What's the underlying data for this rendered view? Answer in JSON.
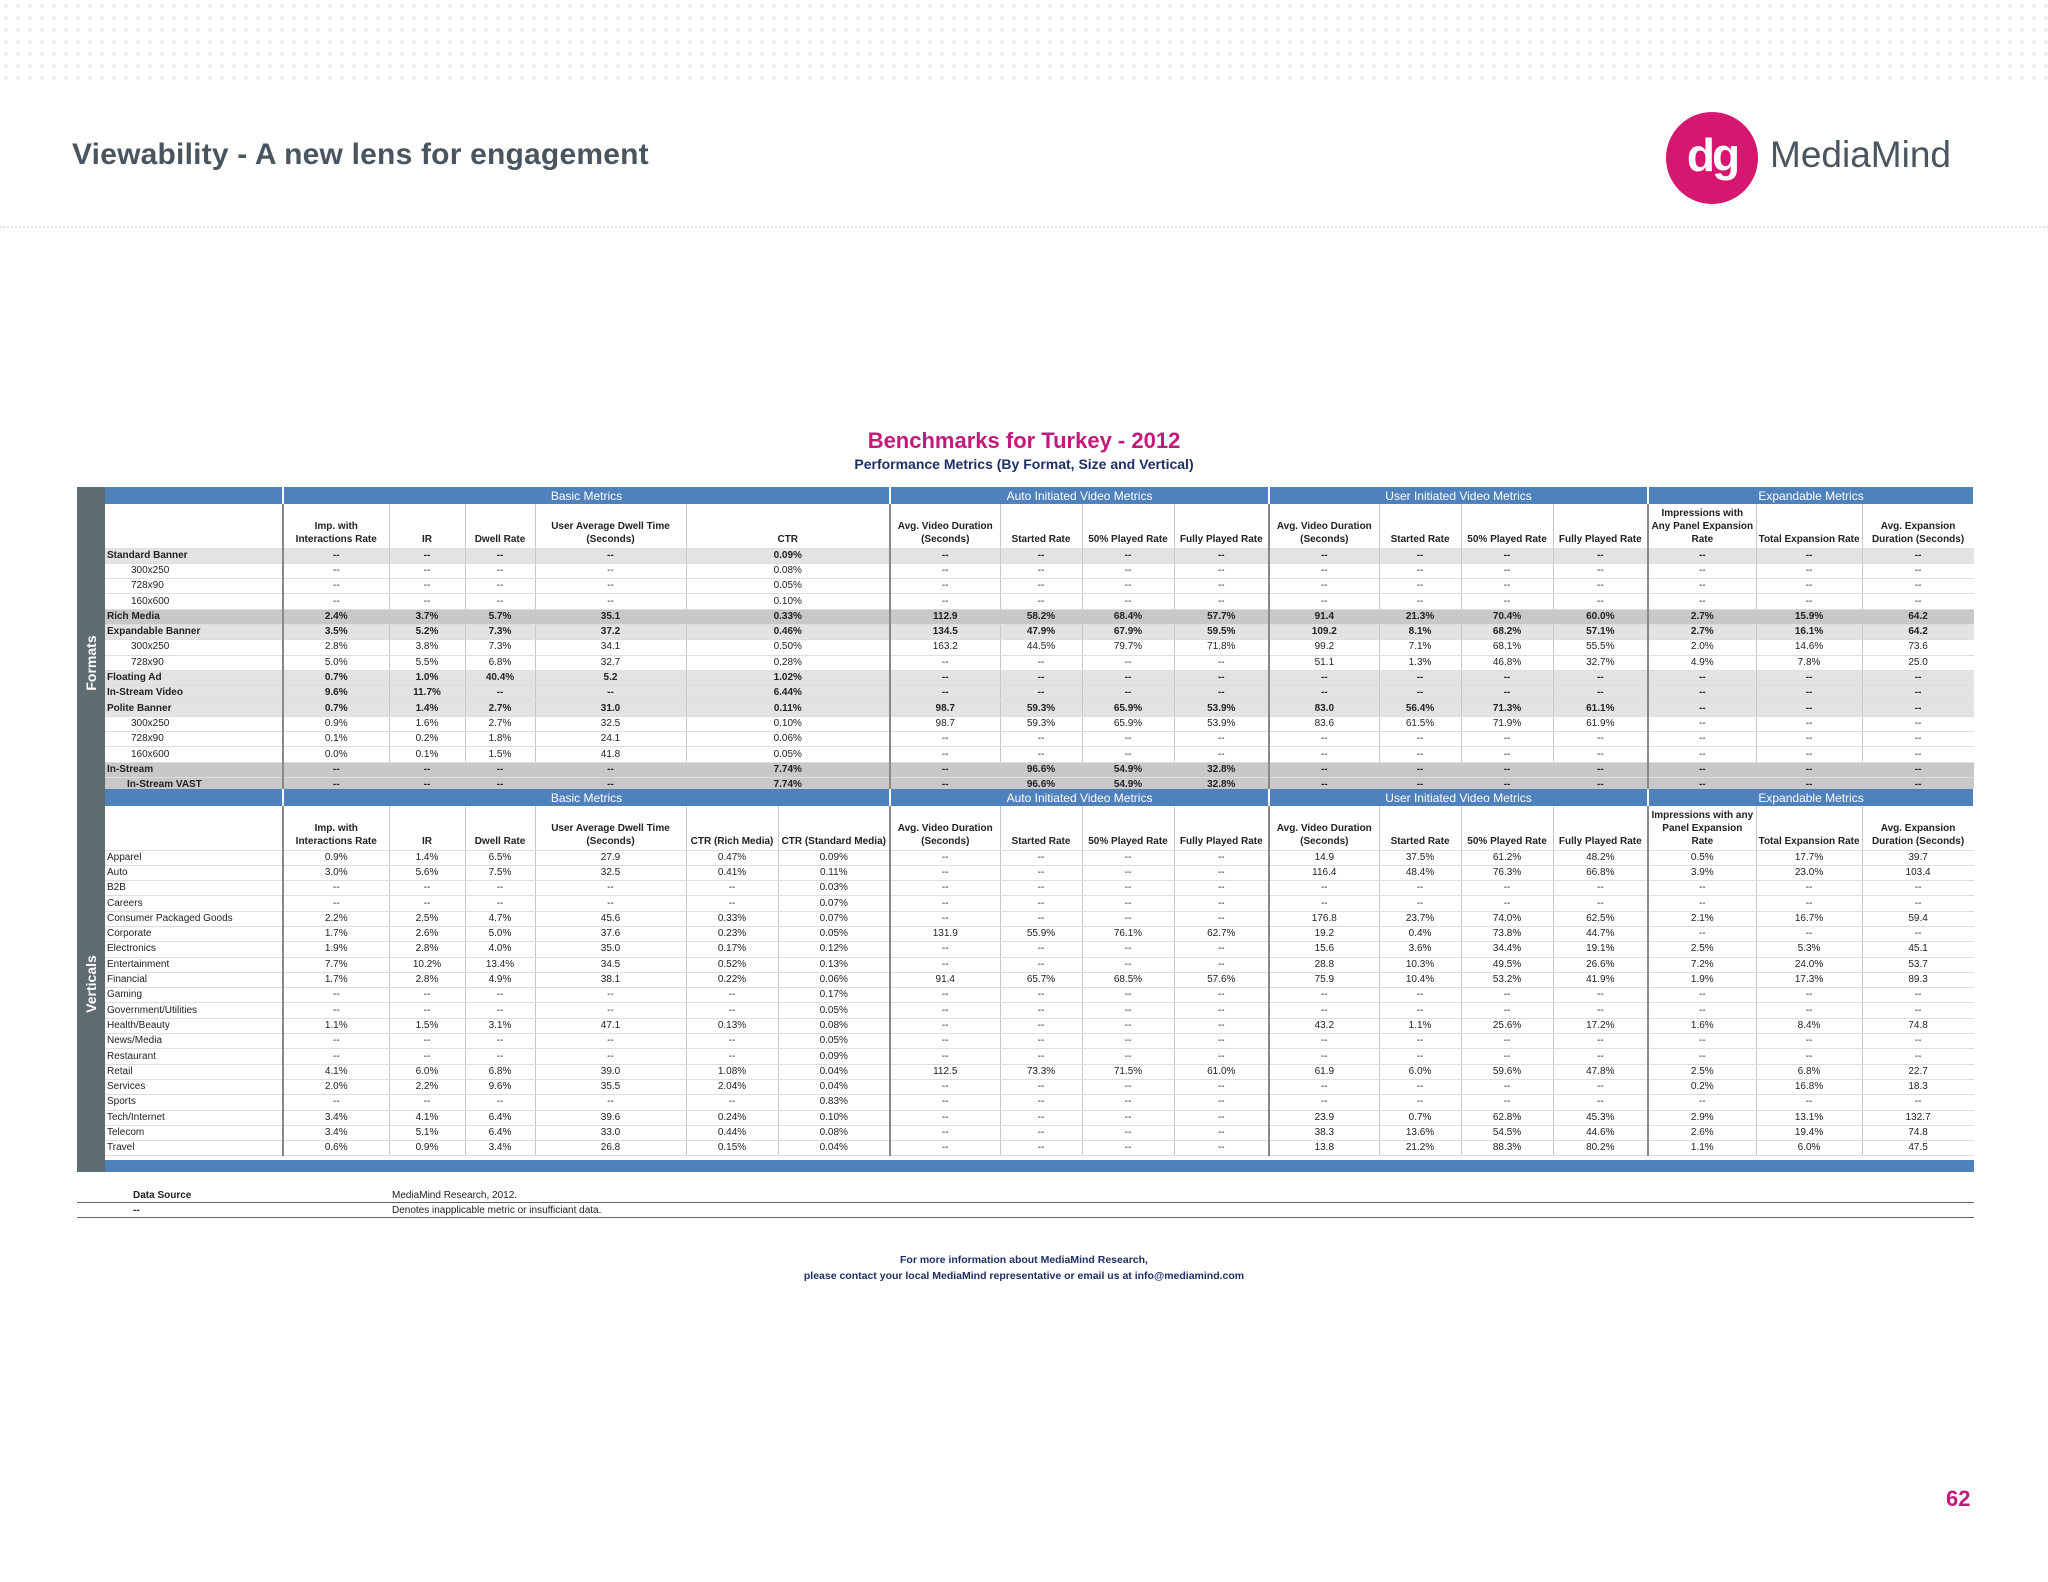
{
  "header": {
    "title": "Viewability - A new lens for engagement",
    "logo_mark": "dg",
    "logo_text": "MediaMind"
  },
  "benchmark": {
    "title": "Benchmarks for Turkey - 2012",
    "subtitle": "Performance Metrics  (By Format, Size and Vertical)"
  },
  "side_labels": {
    "formats": "Formats",
    "verticals": "Verticals"
  },
  "sections": [
    "Basic Metrics",
    "Auto Initiated Video Metrics",
    "User Initiated Video Metrics",
    "Expandable Metrics"
  ],
  "formats_columns": [
    "",
    "Imp. with Interactions Rate",
    "IR",
    "Dwell Rate",
    "User Average Dwell Time (Seconds)",
    "CTR",
    "Avg. Video Duration (Seconds)",
    "Started Rate",
    "50% Played Rate",
    "Fully Played Rate",
    "Avg. Video Duration (Seconds)",
    "Started Rate",
    "50% Played Rate",
    "Fully Played Rate",
    "Impressions with Any Panel Expansion Rate",
    "Total Expansion Rate",
    "Avg. Expansion Duration (Seconds)"
  ],
  "verticals_columns": [
    "",
    "Imp. with Interactions Rate",
    "IR",
    "Dwell Rate",
    "User Average Dwell Time (Seconds)",
    "CTR (Rich Media)",
    "CTR (Standard Media)",
    "Avg. Video Duration (Seconds)",
    "Started Rate",
    "50% Played Rate",
    "Fully Played Rate",
    "Avg. Video Duration (Seconds)",
    "Started Rate",
    "50% Played Rate",
    "Fully Played Rate",
    "Impressions with any Panel Expansion Rate",
    "Total Expansion Rate",
    "Avg. Expansion Duration (Seconds)"
  ],
  "format_rows": [
    {
      "label": "Standard Banner",
      "kind": "group",
      "cells": [
        "--",
        "--",
        "--",
        "--",
        "0.09%",
        "--",
        "--",
        "--",
        "--",
        "--",
        "--",
        "--",
        "--",
        "--",
        "--",
        "--"
      ]
    },
    {
      "label": "300x250",
      "kind": "sub",
      "cells": [
        "--",
        "--",
        "--",
        "--",
        "0.08%",
        "--",
        "--",
        "--",
        "--",
        "--",
        "--",
        "--",
        "--",
        "--",
        "--",
        "--"
      ]
    },
    {
      "label": "728x90",
      "kind": "sub",
      "cells": [
        "--",
        "--",
        "--",
        "--",
        "0.05%",
        "--",
        "--",
        "--",
        "--",
        "--",
        "--",
        "--",
        "--",
        "--",
        "--",
        "--"
      ]
    },
    {
      "label": "160x600",
      "kind": "sub",
      "cells": [
        "--",
        "--",
        "--",
        "--",
        "0.10%",
        "--",
        "--",
        "--",
        "--",
        "--",
        "--",
        "--",
        "--",
        "--",
        "--",
        "--"
      ]
    },
    {
      "label": "Rich Media",
      "kind": "rich",
      "cells": [
        "2.4%",
        "3.7%",
        "5.7%",
        "35.1",
        "0.33%",
        "112.9",
        "58.2%",
        "68.4%",
        "57.7%",
        "91.4",
        "21.3%",
        "70.4%",
        "60.0%",
        "2.7%",
        "15.9%",
        "64.2"
      ]
    },
    {
      "label": "Expandable Banner",
      "kind": "group",
      "cells": [
        "3.5%",
        "5.2%",
        "7.3%",
        "37.2",
        "0.46%",
        "134.5",
        "47.9%",
        "67.9%",
        "59.5%",
        "109.2",
        "8.1%",
        "68.2%",
        "57.1%",
        "2.7%",
        "16.1%",
        "64.2"
      ]
    },
    {
      "label": "300x250",
      "kind": "sub",
      "cells": [
        "2.8%",
        "3.8%",
        "7.3%",
        "34.1",
        "0.50%",
        "163.2",
        "44.5%",
        "79.7%",
        "71.8%",
        "99.2",
        "7.1%",
        "68.1%",
        "55.5%",
        "2.0%",
        "14.6%",
        "73.6"
      ]
    },
    {
      "label": "728x90",
      "kind": "sub",
      "cells": [
        "5.0%",
        "5.5%",
        "6.8%",
        "32.7",
        "0.28%",
        "--",
        "--",
        "--",
        "--",
        "51.1",
        "1.3%",
        "46.8%",
        "32.7%",
        "4.9%",
        "7.8%",
        "25.0"
      ]
    },
    {
      "label": "Floating Ad",
      "kind": "group",
      "cells": [
        "0.7%",
        "1.0%",
        "40.4%",
        "5.2",
        "1.02%",
        "--",
        "--",
        "--",
        "--",
        "--",
        "--",
        "--",
        "--",
        "--",
        "--",
        "--"
      ]
    },
    {
      "label": "In-Stream Video",
      "kind": "group",
      "cells": [
        "9.6%",
        "11.7%",
        "--",
        "--",
        "6.44%",
        "--",
        "--",
        "--",
        "--",
        "--",
        "--",
        "--",
        "--",
        "--",
        "--",
        "--"
      ]
    },
    {
      "label": "Polite Banner",
      "kind": "group",
      "cells": [
        "0.7%",
        "1.4%",
        "2.7%",
        "31.0",
        "0.11%",
        "98.7",
        "59.3%",
        "65.9%",
        "53.9%",
        "83.0",
        "56.4%",
        "71.3%",
        "61.1%",
        "--",
        "--",
        "--"
      ]
    },
    {
      "label": "300x250",
      "kind": "sub",
      "cells": [
        "0.9%",
        "1.6%",
        "2.7%",
        "32.5",
        "0.10%",
        "98.7",
        "59.3%",
        "65.9%",
        "53.9%",
        "83.6",
        "61.5%",
        "71.9%",
        "61.9%",
        "--",
        "--",
        "--"
      ]
    },
    {
      "label": "728x90",
      "kind": "sub",
      "cells": [
        "0.1%",
        "0.2%",
        "1.8%",
        "24.1",
        "0.06%",
        "--",
        "--",
        "--",
        "--",
        "--",
        "--",
        "--",
        "--",
        "--",
        "--",
        "--"
      ]
    },
    {
      "label": "160x600",
      "kind": "sub",
      "cells": [
        "0.0%",
        "0.1%",
        "1.5%",
        "41.8",
        "0.05%",
        "--",
        "--",
        "--",
        "--",
        "--",
        "--",
        "--",
        "--",
        "--",
        "--",
        "--"
      ]
    },
    {
      "label": "In-Stream",
      "kind": "instream",
      "cells": [
        "--",
        "--",
        "--",
        "--",
        "7.74%",
        "--",
        "96.6%",
        "54.9%",
        "32.8%",
        "--",
        "--",
        "--",
        "--",
        "--",
        "--",
        "--"
      ]
    },
    {
      "label": "In-Stream VAST",
      "kind": "instream-sub",
      "cells": [
        "--",
        "--",
        "--",
        "--",
        "7.74%",
        "--",
        "96.6%",
        "54.9%",
        "32.8%",
        "--",
        "--",
        "--",
        "--",
        "--",
        "--",
        "--"
      ]
    }
  ],
  "vertical_rows": [
    {
      "label": "Apparel",
      "cells": [
        "0.9%",
        "1.4%",
        "6.5%",
        "27.9",
        "0.47%",
        "0.09%",
        "--",
        "--",
        "--",
        "--",
        "14.9",
        "37.5%",
        "61.2%",
        "48.2%",
        "0.5%",
        "17.7%",
        "39.7"
      ]
    },
    {
      "label": "Auto",
      "cells": [
        "3.0%",
        "5.6%",
        "7.5%",
        "32.5",
        "0.41%",
        "0.11%",
        "--",
        "--",
        "--",
        "--",
        "116.4",
        "48.4%",
        "76.3%",
        "66.8%",
        "3.9%",
        "23.0%",
        "103.4"
      ]
    },
    {
      "label": "B2B",
      "cells": [
        "--",
        "--",
        "--",
        "--",
        "--",
        "0.03%",
        "--",
        "--",
        "--",
        "--",
        "--",
        "--",
        "--",
        "--",
        "--",
        "--",
        "--"
      ]
    },
    {
      "label": "Careers",
      "cells": [
        "--",
        "--",
        "--",
        "--",
        "--",
        "0.07%",
        "--",
        "--",
        "--",
        "--",
        "--",
        "--",
        "--",
        "--",
        "--",
        "--",
        "--"
      ]
    },
    {
      "label": "Consumer Packaged Goods",
      "cells": [
        "2.2%",
        "2.5%",
        "4.7%",
        "45.6",
        "0.33%",
        "0.07%",
        "--",
        "--",
        "--",
        "--",
        "176.8",
        "23.7%",
        "74.0%",
        "62.5%",
        "2.1%",
        "16.7%",
        "59.4"
      ]
    },
    {
      "label": "Corporate",
      "cells": [
        "1.7%",
        "2.6%",
        "5.0%",
        "37.6",
        "0.23%",
        "0.05%",
        "131.9",
        "55.9%",
        "76.1%",
        "62.7%",
        "19.2",
        "0.4%",
        "73.8%",
        "44.7%",
        "--",
        "--",
        "--"
      ]
    },
    {
      "label": "Electronics",
      "cells": [
        "1.9%",
        "2.8%",
        "4.0%",
        "35.0",
        "0.17%",
        "0.12%",
        "--",
        "--",
        "--",
        "--",
        "15.6",
        "3.6%",
        "34.4%",
        "19.1%",
        "2.5%",
        "5.3%",
        "45.1"
      ]
    },
    {
      "label": "Entertainment",
      "cells": [
        "7.7%",
        "10.2%",
        "13.4%",
        "34.5",
        "0.52%",
        "0.13%",
        "--",
        "--",
        "--",
        "--",
        "28.8",
        "10.3%",
        "49.5%",
        "26.6%",
        "7.2%",
        "24.0%",
        "53.7"
      ]
    },
    {
      "label": "Financial",
      "cells": [
        "1.7%",
        "2.8%",
        "4.9%",
        "38.1",
        "0.22%",
        "0.06%",
        "91.4",
        "65.7%",
        "68.5%",
        "57.6%",
        "75.9",
        "10.4%",
        "53.2%",
        "41.9%",
        "1.9%",
        "17.3%",
        "89.3"
      ]
    },
    {
      "label": "Gaming",
      "cells": [
        "--",
        "--",
        "--",
        "--",
        "--",
        "0.17%",
        "--",
        "--",
        "--",
        "--",
        "--",
        "--",
        "--",
        "--",
        "--",
        "--",
        "--"
      ]
    },
    {
      "label": "Government/Utilities",
      "cells": [
        "--",
        "--",
        "--",
        "--",
        "--",
        "0.05%",
        "--",
        "--",
        "--",
        "--",
        "--",
        "--",
        "--",
        "--",
        "--",
        "--",
        "--"
      ]
    },
    {
      "label": "Health/Beauty",
      "cells": [
        "1.1%",
        "1.5%",
        "3.1%",
        "47.1",
        "0.13%",
        "0.08%",
        "--",
        "--",
        "--",
        "--",
        "43.2",
        "1.1%",
        "25.6%",
        "17.2%",
        "1.6%",
        "8.4%",
        "74.8"
      ]
    },
    {
      "label": "News/Media",
      "cells": [
        "--",
        "--",
        "--",
        "--",
        "--",
        "0.05%",
        "--",
        "--",
        "--",
        "--",
        "--",
        "--",
        "--",
        "--",
        "--",
        "--",
        "--"
      ]
    },
    {
      "label": "Restaurant",
      "cells": [
        "--",
        "--",
        "--",
        "--",
        "--",
        "0.09%",
        "--",
        "--",
        "--",
        "--",
        "--",
        "--",
        "--",
        "--",
        "--",
        "--",
        "--"
      ]
    },
    {
      "label": "Retail",
      "cells": [
        "4.1%",
        "6.0%",
        "6.8%",
        "39.0",
        "1.08%",
        "0.04%",
        "112.5",
        "73.3%",
        "71.5%",
        "61.0%",
        "61.9",
        "6.0%",
        "59.6%",
        "47.8%",
        "2.5%",
        "6.8%",
        "22.7"
      ]
    },
    {
      "label": "Services",
      "cells": [
        "2.0%",
        "2.2%",
        "9.6%",
        "35.5",
        "2.04%",
        "0.04%",
        "--",
        "--",
        "--",
        "--",
        "--",
        "--",
        "--",
        "--",
        "0.2%",
        "16.8%",
        "18.3"
      ]
    },
    {
      "label": "Sports",
      "cells": [
        "--",
        "--",
        "--",
        "--",
        "--",
        "0.83%",
        "--",
        "--",
        "--",
        "--",
        "--",
        "--",
        "--",
        "--",
        "--",
        "--",
        "--"
      ]
    },
    {
      "label": "Tech/Internet",
      "cells": [
        "3.4%",
        "4.1%",
        "6.4%",
        "39.6",
        "0.24%",
        "0.10%",
        "--",
        "--",
        "--",
        "--",
        "23.9",
        "0.7%",
        "62.8%",
        "45.3%",
        "2.9%",
        "13.1%",
        "132.7"
      ]
    },
    {
      "label": "Telecom",
      "cells": [
        "3.4%",
        "5.1%",
        "6.4%",
        "33.0",
        "0.44%",
        "0.08%",
        "--",
        "--",
        "--",
        "--",
        "38.3",
        "13.6%",
        "54.5%",
        "44.6%",
        "2.6%",
        "19.4%",
        "74.8"
      ]
    },
    {
      "label": "Travel",
      "cells": [
        "0.6%",
        "0.9%",
        "3.4%",
        "26.8",
        "0.15%",
        "0.04%",
        "--",
        "--",
        "--",
        "--",
        "13.8",
        "21.2%",
        "88.3%",
        "80.2%",
        "1.1%",
        "6.0%",
        "47.5"
      ]
    }
  ],
  "legend": [
    {
      "key": "Data Source",
      "value": "MediaMind Research, 2012."
    },
    {
      "key": "--",
      "value": "Denotes inapplicable metric or insufficiant data."
    }
  ],
  "contact": {
    "line1": "For more information about MediaMind Research,",
    "line2": "please contact your local MediaMind representative or email us at info@mediamind.com"
  },
  "page_number": "62"
}
